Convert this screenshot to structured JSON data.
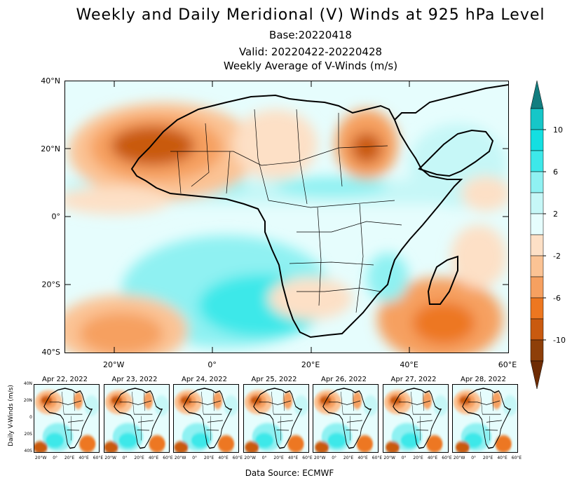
{
  "title": "Weekly and Daily Meridional (V) Winds at 925 hPa Level",
  "base": "Base:20220418",
  "valid": "Valid: 20220422-20220428",
  "subtitle": "Weekly Average of V-Winds (m/s)",
  "source": "Data Source: ECMWF",
  "small_ylabel": "Daily V-Winds (m/s)",
  "map_axes": {
    "lat_labels": [
      "40°N",
      "20°N",
      "0°",
      "20°S",
      "40°S"
    ],
    "lon_labels": [
      "20°W",
      "0°",
      "20°E",
      "40°E",
      "60°E"
    ],
    "lon_range": [
      -30,
      60
    ],
    "lat_range": [
      -40,
      40
    ]
  },
  "colorbar": {
    "labels": [
      "10",
      "6",
      "2",
      "-2",
      "-6",
      "-10"
    ],
    "colors": [
      "#127d7f",
      "#16c6c8",
      "#14dfe1",
      "#3de8e9",
      "#8ff1f2",
      "#c6f7f7",
      "#e6fdfd",
      "#fde0c6",
      "#fbc394",
      "#f6a060",
      "#ed7720",
      "#c95a10",
      "#8e3f09",
      "#6e2c04"
    ]
  },
  "daily_panels": [
    {
      "date": "Apr 22, 2022"
    },
    {
      "date": "Apr 23, 2022"
    },
    {
      "date": "Apr 24, 2022"
    },
    {
      "date": "Apr 25, 2022"
    },
    {
      "date": "Apr 26, 2022"
    },
    {
      "date": "Apr 27, 2022"
    },
    {
      "date": "Apr 28, 2022"
    }
  ],
  "small_axes": {
    "lat_labels": [
      "40N",
      "20N",
      "0",
      "20S",
      "40S"
    ],
    "lon_labels": [
      "20°W",
      "0°",
      "20°E",
      "40°E",
      "60°E"
    ]
  }
}
